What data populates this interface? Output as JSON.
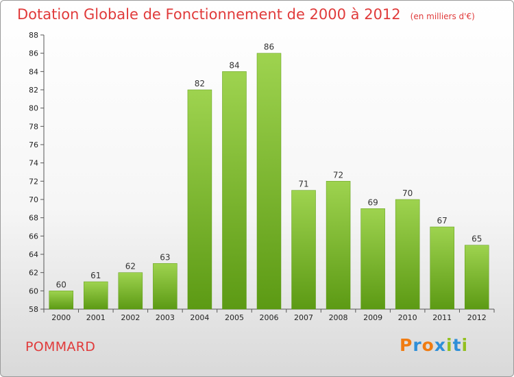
{
  "chart_data": {
    "type": "bar",
    "title": "Dotation Globale de Fonctionnement de 2000 à 2012",
    "subtitle": "(en milliers d'€)",
    "categories": [
      "2000",
      "2001",
      "2002",
      "2003",
      "2004",
      "2005",
      "2006",
      "2007",
      "2008",
      "2009",
      "2010",
      "2011",
      "2012"
    ],
    "values": [
      60,
      61,
      62,
      63,
      82,
      84,
      86,
      71,
      72,
      69,
      70,
      67,
      65
    ],
    "ylim": [
      58,
      88
    ],
    "yticks": [
      58,
      60,
      62,
      64,
      66,
      68,
      70,
      72,
      74,
      76,
      78,
      80,
      82,
      84,
      86,
      88
    ],
    "grid": false,
    "bar_color": "#7cbf2e",
    "bar_color_light": "#9ed34f",
    "bar_color_dark": "#5c9a14"
  },
  "footer": {
    "commune": "POMMARD",
    "logo_letters": [
      "P",
      "r",
      "o",
      "x",
      "i",
      "t",
      "i"
    ],
    "logo_colors": [
      "#f07c12",
      "#2f8fd8",
      "#f07c12",
      "#2f8fd8",
      "#93c01f",
      "#2f8fd8",
      "#93c01f"
    ]
  },
  "colors": {
    "title": "#e03a3a",
    "axis": "#555555"
  }
}
